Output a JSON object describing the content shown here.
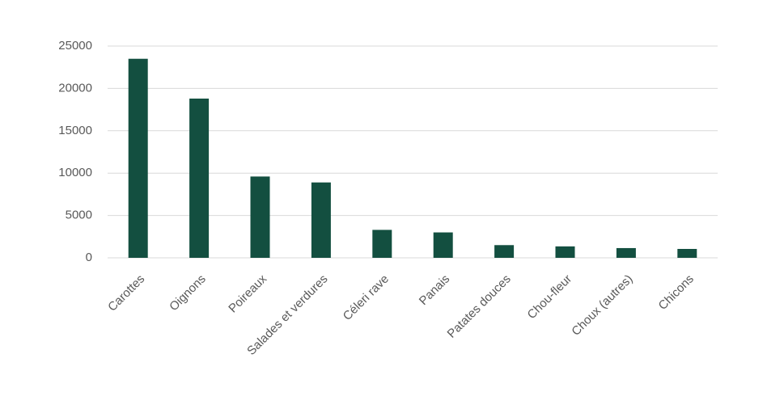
{
  "chart_data": {
    "type": "bar",
    "categories": [
      "Carottes",
      "Oignons",
      "Poireaux",
      "Salades et verdures",
      "Céleri rave",
      "Panais",
      "Patates douces",
      "Chou-fleur",
      "Choux (autres)",
      "Chicons"
    ],
    "values": [
      23500,
      18800,
      9600,
      8900,
      3300,
      3000,
      1500,
      1350,
      1150,
      1050
    ],
    "color": "#134f40",
    "ylim": [
      0,
      25000
    ],
    "yticks": [
      0,
      5000,
      10000,
      15000,
      20000,
      25000
    ],
    "grid": true
  }
}
